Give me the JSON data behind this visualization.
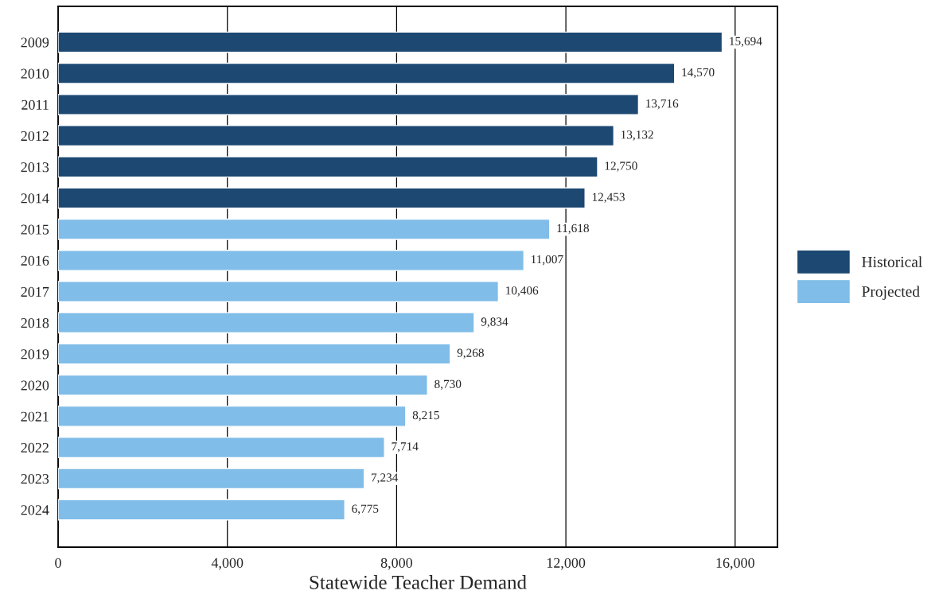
{
  "chart_data": {
    "type": "bar",
    "orientation": "horizontal",
    "xlabel": "Statewide Teacher Demand",
    "categories": [
      "2009",
      "2010",
      "2011",
      "2012",
      "2013",
      "2014",
      "2015",
      "2016",
      "2017",
      "2018",
      "2019",
      "2020",
      "2021",
      "2022",
      "2023",
      "2024"
    ],
    "series": [
      {
        "name": "Historical",
        "color": "#1c4872",
        "values": [
          15694,
          14570,
          13716,
          13132,
          12750,
          12453,
          null,
          null,
          null,
          null,
          null,
          null,
          null,
          null,
          null,
          null
        ],
        "value_labels": [
          "15,694",
          "14,570",
          "13,716",
          "13,132",
          "12,750",
          "12,453",
          null,
          null,
          null,
          null,
          null,
          null,
          null,
          null,
          null,
          null
        ]
      },
      {
        "name": "Projected",
        "color": "#80bde8",
        "values": [
          null,
          null,
          null,
          null,
          null,
          null,
          11618,
          11007,
          10406,
          9834,
          9268,
          8730,
          8215,
          7714,
          7234,
          6775
        ],
        "value_labels": [
          null,
          null,
          null,
          null,
          null,
          null,
          "11,618",
          "11,007",
          "10,406",
          "9,834",
          "9,268",
          "8,730",
          "8,215",
          "7,714",
          "7,234",
          "6,775"
        ]
      }
    ],
    "xlim": [
      0,
      17000
    ],
    "xticks": [
      0,
      {
        "value": 4000,
        "label": "4,000"
      },
      {
        "value": 8000,
        "label": "8,000"
      },
      {
        "value": 12000,
        "label": "12,000"
      },
      {
        "value": 16000,
        "label": "16,000"
      }
    ],
    "grid": "x",
    "legend": "right"
  }
}
